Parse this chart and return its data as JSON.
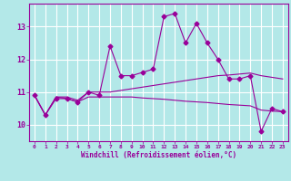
{
  "xlabel": "Windchill (Refroidissement éolien,°C)",
  "ylabel": "",
  "bg_color": "#b3e8e8",
  "grid_color": "#ffffff",
  "line_color": "#990099",
  "xlim": [
    -0.5,
    23.5
  ],
  "ylim": [
    9.5,
    13.7
  ],
  "yticks": [
    10,
    11,
    12,
    13
  ],
  "xticks": [
    0,
    1,
    2,
    3,
    4,
    5,
    6,
    7,
    8,
    9,
    10,
    11,
    12,
    13,
    14,
    15,
    16,
    17,
    18,
    19,
    20,
    21,
    22,
    23
  ],
  "line1_x": [
    0,
    1,
    2,
    3,
    4,
    5,
    6,
    7,
    8,
    9,
    10,
    11,
    12,
    13,
    14,
    15,
    16,
    17,
    18,
    19,
    20,
    21,
    22,
    23
  ],
  "line1_y": [
    10.9,
    10.3,
    10.8,
    10.8,
    10.7,
    11.0,
    10.9,
    12.4,
    11.5,
    11.5,
    11.6,
    11.7,
    13.3,
    13.4,
    12.5,
    13.1,
    12.5,
    12.0,
    11.4,
    11.4,
    11.5,
    9.8,
    10.5,
    10.4
  ],
  "line2_x": [
    0,
    1,
    2,
    3,
    4,
    5,
    6,
    7,
    8,
    9,
    10,
    11,
    12,
    13,
    14,
    15,
    16,
    17,
    18,
    19,
    20,
    21,
    22,
    23
  ],
  "line2_y": [
    10.9,
    10.3,
    10.85,
    10.85,
    10.75,
    11.0,
    11.0,
    11.0,
    11.05,
    11.1,
    11.15,
    11.2,
    11.25,
    11.3,
    11.35,
    11.4,
    11.45,
    11.5,
    11.52,
    11.55,
    11.58,
    11.5,
    11.45,
    11.4
  ],
  "line3_x": [
    0,
    1,
    2,
    3,
    4,
    5,
    6,
    7,
    8,
    9,
    10,
    11,
    12,
    13,
    14,
    15,
    16,
    17,
    18,
    19,
    20,
    21,
    22,
    23
  ],
  "line3_y": [
    10.9,
    10.3,
    10.85,
    10.8,
    10.7,
    10.85,
    10.85,
    10.85,
    10.85,
    10.85,
    10.82,
    10.8,
    10.78,
    10.75,
    10.72,
    10.7,
    10.68,
    10.65,
    10.62,
    10.6,
    10.58,
    10.45,
    10.42,
    10.4
  ],
  "marker": "D",
  "marker_size": 2.5,
  "line_width": 0.8
}
